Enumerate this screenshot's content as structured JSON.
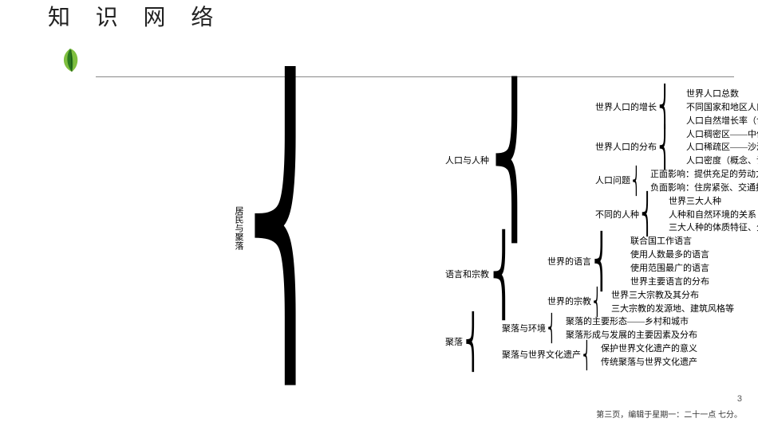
{
  "title": "知 识 网 络",
  "page_number": "3",
  "footer": "第三页，编辑于星期一：二十一点 七分。",
  "colors": {
    "leaf_dark": "#2a7a1f",
    "leaf_light": "#7fbf3f",
    "title_color": "#222222",
    "line_color": "#888888",
    "text_color": "#000000",
    "background": "#ffffff"
  },
  "typography": {
    "title_fontsize": 28,
    "title_letter_spacing": 12,
    "tree_fontsize": 11,
    "footer_fontsize": 10
  },
  "tree": {
    "root": "居民与聚落",
    "children": [
      {
        "label": "人口与人种",
        "children": [
          {
            "label": "世界人口的增长",
            "children": [
              {
                "label": "世界人口总数"
              },
              {
                "label": "不同国家和地区人口增长的速度不同"
              },
              {
                "label": "人口自然增长率（含义、计算）"
              }
            ]
          },
          {
            "label": "世界人口的分布",
            "children": [
              {
                "label": "人口稠密区——中低纬度近海的平原地区"
              },
              {
                "label": "人口稀疏区——沙漠、雨林、高纬度地区、高原山地"
              },
              {
                "label": "人口密度（概念、计算方法）"
              }
            ]
          },
          {
            "label": "人口问题",
            "children": [
              {
                "label": "正面影响：提供充足的劳动力"
              },
              {
                "label": "负面影响：住房紧张、交通拥挤、资源短缺、环境恶化等"
              }
            ]
          },
          {
            "label": "不同的人种",
            "children": [
              {
                "label": "世界三大人种"
              },
              {
                "label": "人种和自然环境的关系"
              },
              {
                "label": "三大人种的体质特征、分布"
              }
            ]
          }
        ]
      },
      {
        "label": "语言和宗教",
        "children": [
          {
            "label": "世界的语言",
            "children": [
              {
                "label": "联合国工作语言"
              },
              {
                "label": "使用人数最多的语言"
              },
              {
                "label": "使用范围最广的语言"
              },
              {
                "label": "世界主要语言的分布"
              }
            ]
          },
          {
            "label": "世界的宗教",
            "children": [
              {
                "label": "世界三大宗教及其分布"
              },
              {
                "label": "三大宗教的发源地、建筑风格等"
              }
            ]
          }
        ]
      },
      {
        "label": "聚落",
        "children": [
          {
            "label": "聚落与环境",
            "children": [
              {
                "label": "聚落的主要形态——乡村和城市"
              },
              {
                "label": "聚落形成与发展的主要因素及分布"
              }
            ]
          },
          {
            "label": "聚落与世界文化遗产",
            "children": [
              {
                "label": "保护世界文化遗产的意义"
              },
              {
                "label": "传统聚落与世界文化遗产"
              }
            ]
          }
        ]
      }
    ]
  }
}
